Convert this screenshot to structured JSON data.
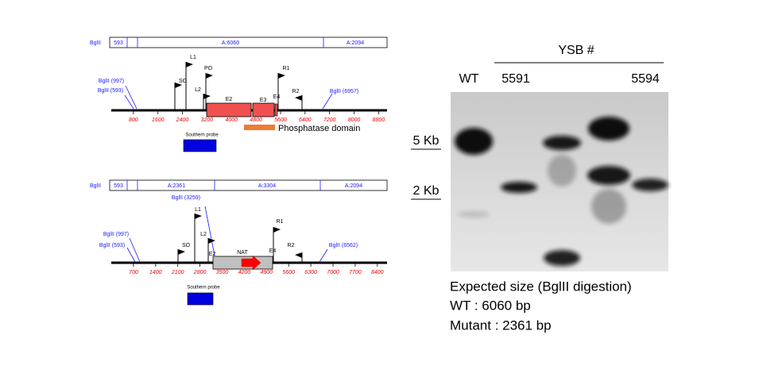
{
  "maps": [
    {
      "restriction_map": {
        "enzyme": "BglII",
        "site": "593",
        "fragments": [
          "A:6060",
          "A:2094"
        ]
      },
      "sites": [
        "BglII (997)",
        "BglII (593)",
        "BglII (6957)"
      ],
      "primers": [
        "L1",
        "PO",
        "SO",
        "L2",
        "R1",
        "R2"
      ],
      "exons": [
        "E2",
        "E3",
        "E4"
      ],
      "scale": [
        800,
        1600,
        2400,
        3200,
        4000,
        4800,
        5600,
        6400,
        7200,
        8000,
        8800
      ],
      "domain": "Phosphatase domain",
      "probe": "Southern probe"
    },
    {
      "restriction_map": {
        "enzyme": "BglII",
        "site": "593",
        "fragments": [
          "A:2361",
          "A:3304",
          "A:2094"
        ]
      },
      "sites": [
        "BglII (3259)",
        "BglII (997)",
        "BglII (593)",
        "BglII (6562)"
      ],
      "primers": [
        "L1",
        "L2",
        "SO",
        "R1",
        "R2"
      ],
      "exons": [
        "E2",
        "E4"
      ],
      "marker": "NAT",
      "scale": [
        700,
        1400,
        2100,
        2800,
        3500,
        4200,
        4900,
        5600,
        6300,
        7000,
        7700,
        8400
      ],
      "probe": "Southern probe"
    }
  ],
  "gel": {
    "group_label": "YSB #",
    "lanes": [
      "WT",
      "5591",
      "5594"
    ],
    "size_markers": [
      "5 Kb",
      "2 Kb"
    ]
  },
  "caption": [
    "Expected size (BglII digestion)",
    "WT : 6060 bp",
    "Mutant : 2361 bp"
  ]
}
